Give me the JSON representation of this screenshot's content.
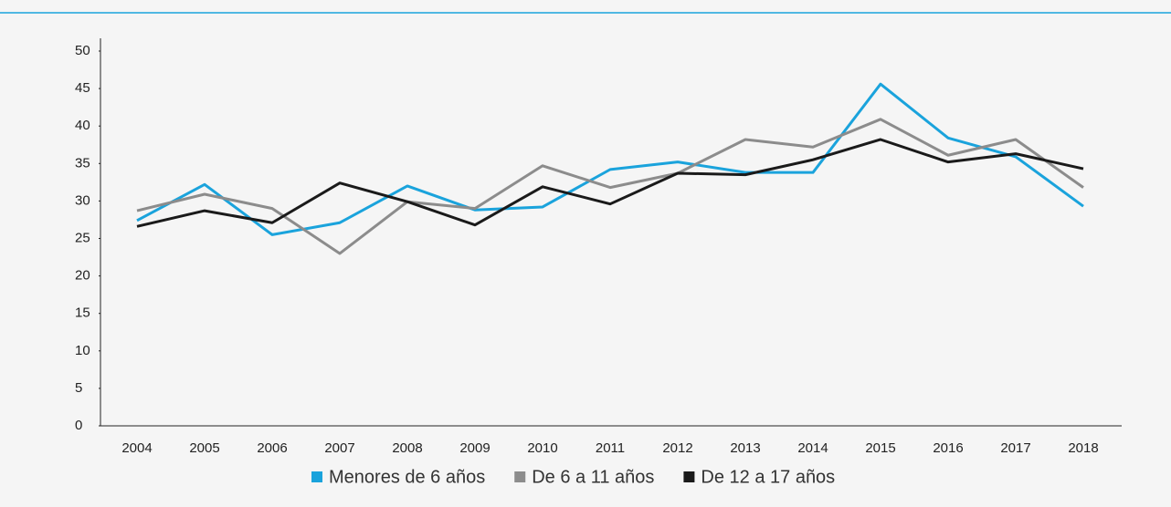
{
  "chart_data": {
    "type": "line",
    "categories": [
      "2004",
      "2005",
      "2006",
      "2007",
      "2008",
      "2009",
      "2010",
      "2011",
      "2012",
      "2013",
      "2014",
      "2015",
      "2016",
      "2017",
      "2018"
    ],
    "series": [
      {
        "name": "Menores de 6 años",
        "color": "#1aa3dc",
        "values": [
          27.4,
          32.2,
          25.5,
          27.1,
          32.0,
          28.8,
          29.2,
          34.2,
          35.2,
          33.8,
          33.8,
          45.6,
          38.4,
          35.9,
          29.3
        ]
      },
      {
        "name": "De 6 a 11 años",
        "color": "#8c8c8c",
        "values": [
          28.7,
          30.9,
          29.0,
          23.0,
          29.9,
          29.0,
          34.7,
          31.8,
          33.7,
          38.2,
          37.2,
          40.9,
          36.1,
          38.2,
          31.8
        ]
      },
      {
        "name": "De 12 a 17 años",
        "color": "#1a1a1a",
        "values": [
          26.6,
          28.7,
          27.1,
          32.4,
          29.9,
          26.8,
          31.9,
          29.6,
          33.7,
          33.5,
          35.5,
          38.2,
          35.2,
          36.3,
          34.3
        ]
      }
    ],
    "ylim": [
      0,
      50
    ],
    "yticks": [
      0,
      5,
      10,
      15,
      20,
      25,
      30,
      35,
      40,
      45,
      50
    ],
    "legend": "bottom"
  }
}
